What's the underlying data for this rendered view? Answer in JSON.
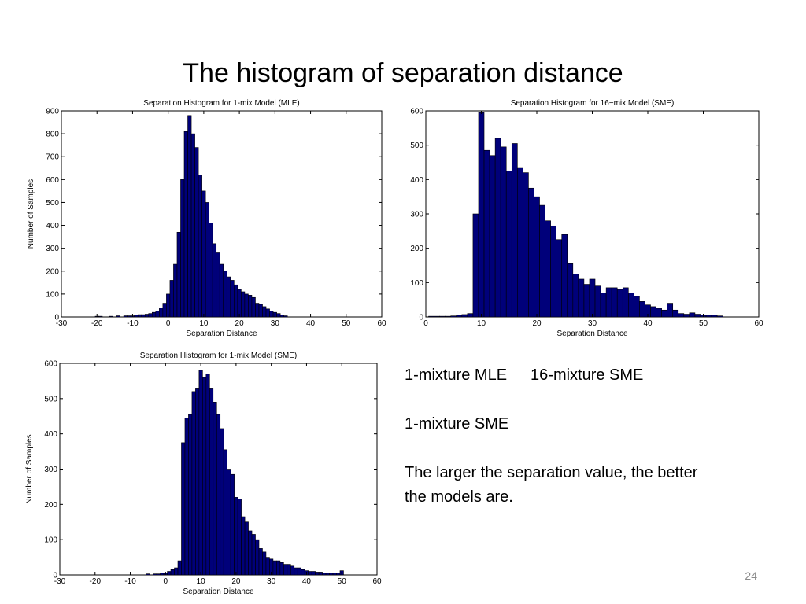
{
  "slide": {
    "title": "The histogram of separation distance",
    "captions": {
      "line1_a": "1-mixture MLE",
      "line1_b": "16-mixture SME",
      "line2": "1-mixture SME",
      "line3": "The larger the separation value, the better",
      "line4": "the models are."
    },
    "page_number": "24"
  },
  "colors": {
    "bar_fill": "#00007a",
    "bar_stroke": "#000000",
    "axis": "#000000"
  },
  "chart_data": [
    {
      "type": "bar",
      "title": "Separation Histogram for 1-mix Model (MLE)",
      "xlabel": "Separation Distance",
      "ylabel": "Number of Samples",
      "xlim": [
        -30,
        60
      ],
      "ylim": [
        0,
        900
      ],
      "xticks": [
        -30,
        -20,
        -10,
        0,
        10,
        20,
        30,
        40,
        50,
        60
      ],
      "yticks": [
        0,
        100,
        200,
        300,
        400,
        500,
        600,
        700,
        800,
        900
      ],
      "bin_width": 1,
      "x": [
        -20,
        -19,
        -16,
        -14,
        -12,
        -11,
        -10,
        -9,
        -8,
        -7,
        -6,
        -5,
        -4,
        -3,
        -2,
        -1,
        0,
        1,
        2,
        3,
        4,
        5,
        6,
        7,
        8,
        9,
        10,
        11,
        12,
        13,
        14,
        15,
        16,
        17,
        18,
        19,
        20,
        21,
        22,
        23,
        24,
        25,
        26,
        27,
        28,
        29,
        30,
        31,
        32,
        33
      ],
      "values": [
        3,
        3,
        3,
        5,
        5,
        5,
        5,
        8,
        10,
        10,
        12,
        15,
        20,
        25,
        40,
        60,
        100,
        160,
        230,
        370,
        600,
        810,
        880,
        800,
        740,
        620,
        550,
        500,
        410,
        320,
        280,
        230,
        200,
        175,
        160,
        140,
        120,
        110,
        100,
        95,
        85,
        60,
        55,
        45,
        35,
        25,
        20,
        15,
        8,
        5
      ]
    },
    {
      "type": "bar",
      "title": "Separation Histogram for 16−mix Model (SME)",
      "xlabel": "Separation Distance",
      "ylabel": "",
      "xlim": [
        0,
        60
      ],
      "ylim": [
        0,
        600
      ],
      "xticks": [
        0,
        10,
        20,
        30,
        40,
        50,
        60
      ],
      "yticks": [
        0,
        100,
        200,
        300,
        400,
        500,
        600
      ],
      "bin_width": 1,
      "x": [
        1,
        2,
        3,
        4,
        5,
        6,
        7,
        8,
        9,
        10,
        11,
        12,
        13,
        14,
        15,
        16,
        17,
        18,
        19,
        20,
        21,
        22,
        23,
        24,
        25,
        26,
        27,
        28,
        29,
        30,
        31,
        32,
        33,
        34,
        35,
        36,
        37,
        38,
        39,
        40,
        41,
        42,
        43,
        44,
        45,
        46,
        47,
        48,
        49,
        50,
        51,
        52,
        53
      ],
      "values": [
        2,
        2,
        2,
        2,
        3,
        5,
        7,
        10,
        300,
        595,
        485,
        470,
        520,
        495,
        425,
        505,
        435,
        420,
        375,
        350,
        325,
        280,
        265,
        225,
        240,
        155,
        125,
        110,
        95,
        110,
        90,
        70,
        85,
        85,
        80,
        85,
        70,
        60,
        45,
        35,
        30,
        25,
        20,
        40,
        20,
        10,
        8,
        12,
        8,
        6,
        5,
        5,
        3
      ]
    },
    {
      "type": "bar",
      "title": "Separation Histogram for 1-mix Model (SME)",
      "xlabel": "Separation Distance",
      "ylabel": "Number of Samples",
      "xlim": [
        -30,
        60
      ],
      "ylim": [
        0,
        600
      ],
      "xticks": [
        -30,
        -20,
        -10,
        0,
        10,
        20,
        30,
        40,
        50,
        60
      ],
      "yticks": [
        0,
        100,
        200,
        300,
        400,
        500,
        600
      ],
      "bin_width": 1,
      "x": [
        -5,
        -3,
        -2,
        -1,
        0,
        1,
        2,
        3,
        4,
        5,
        6,
        7,
        8,
        9,
        10,
        11,
        12,
        13,
        14,
        15,
        16,
        17,
        18,
        19,
        20,
        21,
        22,
        23,
        24,
        25,
        26,
        27,
        28,
        29,
        30,
        31,
        32,
        33,
        34,
        35,
        36,
        37,
        38,
        39,
        40,
        41,
        42,
        43,
        44,
        45,
        46,
        47,
        48,
        49,
        50
      ],
      "values": [
        3,
        3,
        3,
        5,
        5,
        10,
        15,
        20,
        40,
        375,
        445,
        455,
        520,
        530,
        580,
        560,
        570,
        530,
        490,
        455,
        415,
        355,
        300,
        285,
        220,
        215,
        165,
        150,
        125,
        115,
        100,
        75,
        65,
        50,
        45,
        40,
        40,
        35,
        30,
        30,
        25,
        20,
        20,
        15,
        12,
        10,
        10,
        8,
        8,
        6,
        5,
        5,
        5,
        5,
        12
      ]
    }
  ]
}
